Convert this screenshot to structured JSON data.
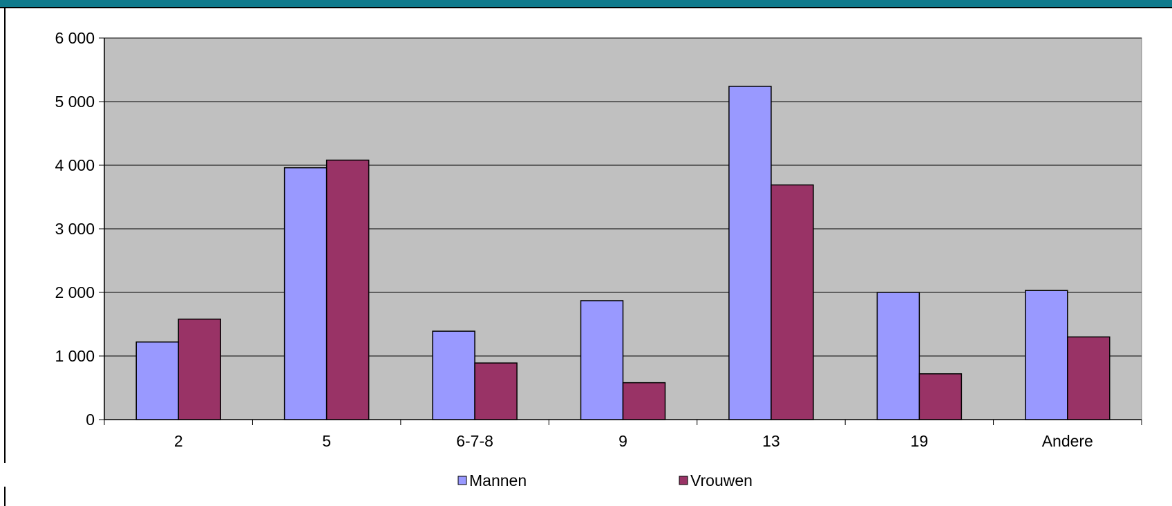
{
  "chart_data": {
    "type": "bar",
    "categories": [
      "2",
      "5",
      "6-7-8",
      "9",
      "13",
      "19",
      "Andere"
    ],
    "series": [
      {
        "name": "Mannen",
        "color": "#9999ff",
        "values": [
          1220,
          3960,
          1390,
          1870,
          5240,
          2000,
          2030
        ]
      },
      {
        "name": "Vrouwen",
        "color": "#993366",
        "values": [
          1580,
          4080,
          890,
          580,
          3690,
          720,
          1300
        ]
      }
    ],
    "yticks": [
      "0",
      "1 000",
      "2 000",
      "3 000",
      "4 000",
      "5 000",
      "6 000"
    ],
    "ylim": [
      0,
      6000
    ],
    "grid": true,
    "legend_position": "bottom",
    "plot_background": "#c0c0c0",
    "title": "",
    "xlabel": "",
    "ylabel": ""
  }
}
